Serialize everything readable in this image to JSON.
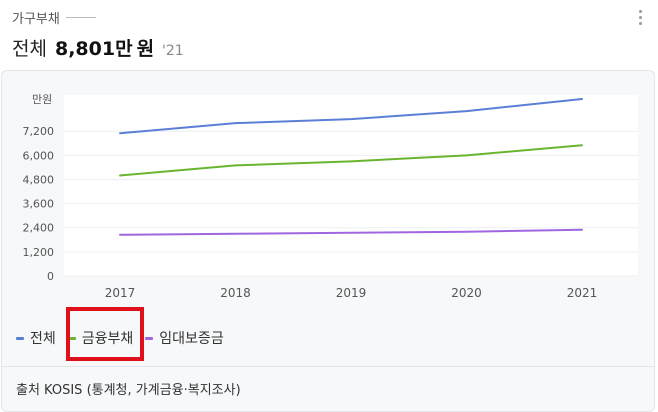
{
  "header": {
    "label": "가구부채",
    "scope": "전체",
    "value": "8,801만",
    "unit": "원",
    "year": "'21"
  },
  "legend": [
    {
      "label": "전체",
      "color": "#5b7fd6"
    },
    {
      "label": "금융부채",
      "color": "#6ab530"
    },
    {
      "label": "임대보증금",
      "color": "#a066e0"
    }
  ],
  "source": "출처 KOSIS (통계청, 가계금융·복지조사)",
  "chart_data": {
    "type": "line",
    "categories": [
      "2017",
      "2018",
      "2019",
      "2020",
      "2021"
    ],
    "ylabel": "만원",
    "yticks": [
      "0",
      "1,200",
      "2,400",
      "3,600",
      "4,800",
      "6,000",
      "7,200"
    ],
    "ylim": [
      0,
      9000
    ],
    "grid": true,
    "legend_position": "bottom-left",
    "series": [
      {
        "name": "전체",
        "color": "#5b7fd6",
        "values": [
          7100,
          7600,
          7800,
          8200,
          8800
        ]
      },
      {
        "name": "금융부채",
        "color": "#6ab530",
        "values": [
          5000,
          5500,
          5700,
          6000,
          6500
        ]
      },
      {
        "name": "임대보증금",
        "color": "#a066e0",
        "values": [
          2050,
          2100,
          2150,
          2200,
          2300
        ]
      }
    ]
  }
}
